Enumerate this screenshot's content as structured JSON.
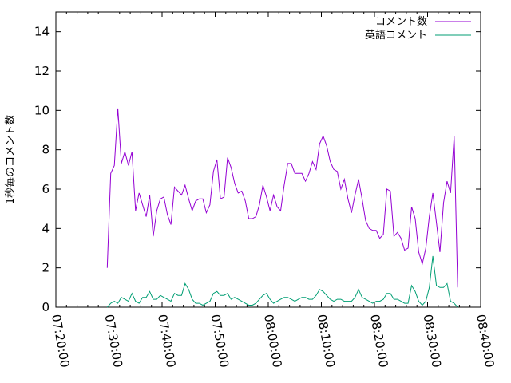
{
  "chart_data": {
    "type": "line",
    "title": "",
    "xlabel": "",
    "ylabel": "1秒毎のコメント数",
    "xlim": [
      "07:20:00",
      "08:40:00"
    ],
    "ylim": [
      0,
      15
    ],
    "yticks": [
      0,
      2,
      4,
      6,
      8,
      10,
      12,
      14
    ],
    "xticks": [
      "07:20:00",
      "07:30:00",
      "07:40:00",
      "07:50:00",
      "08:00:00",
      "08:10:00",
      "08:20:00",
      "08:30:00",
      "08:40:00"
    ],
    "grid": false,
    "legend": "top-right",
    "x_step_seconds": 40,
    "x_start": "07:29:40",
    "series": [
      {
        "name": "コメント数",
        "color": "#9400d3",
        "values": [
          2.0,
          6.8,
          7.2,
          10.1,
          7.3,
          7.9,
          7.2,
          7.9,
          4.9,
          5.8,
          5.2,
          4.6,
          5.7,
          3.6,
          4.9,
          5.5,
          5.6,
          4.7,
          4.2,
          6.1,
          5.9,
          5.7,
          6.2,
          5.5,
          4.9,
          5.4,
          5.5,
          5.5,
          4.8,
          5.2,
          6.9,
          7.5,
          5.5,
          5.6,
          7.6,
          7.1,
          6.3,
          5.8,
          5.9,
          5.4,
          4.5,
          4.5,
          4.6,
          5.2,
          6.2,
          5.6,
          4.9,
          5.7,
          5.1,
          4.9,
          6.2,
          7.3,
          7.3,
          6.8,
          6.8,
          6.8,
          6.4,
          6.8,
          7.4,
          7.0,
          8.3,
          8.7,
          8.2,
          7.4,
          7.0,
          6.9,
          6.0,
          6.5,
          5.5,
          4.8,
          5.7,
          6.5,
          5.5,
          4.4,
          4.0,
          3.9,
          3.9,
          3.5,
          3.7,
          6.0,
          5.9,
          3.6,
          3.8,
          3.5,
          2.9,
          3.0,
          5.1,
          4.5,
          2.8,
          2.2,
          3.0,
          4.6,
          5.8,
          4.3,
          2.8,
          5.3,
          6.4,
          5.8,
          8.7,
          1.0
        ]
      },
      {
        "name": "英語コメント",
        "color": "#009e73",
        "values": [
          0.0,
          0.2,
          0.3,
          0.2,
          0.5,
          0.4,
          0.3,
          0.7,
          0.3,
          0.2,
          0.5,
          0.5,
          0.8,
          0.4,
          0.4,
          0.6,
          0.5,
          0.4,
          0.3,
          0.7,
          0.6,
          0.6,
          1.2,
          0.9,
          0.4,
          0.2,
          0.2,
          0.1,
          0.2,
          0.3,
          0.7,
          0.8,
          0.6,
          0.6,
          0.7,
          0.4,
          0.5,
          0.4,
          0.3,
          0.2,
          0.1,
          0.1,
          0.2,
          0.4,
          0.6,
          0.7,
          0.4,
          0.2,
          0.3,
          0.4,
          0.5,
          0.5,
          0.4,
          0.3,
          0.4,
          0.5,
          0.5,
          0.4,
          0.4,
          0.6,
          0.9,
          0.8,
          0.6,
          0.4,
          0.3,
          0.4,
          0.4,
          0.3,
          0.3,
          0.3,
          0.5,
          0.9,
          0.5,
          0.4,
          0.3,
          0.2,
          0.3,
          0.3,
          0.4,
          0.7,
          0.7,
          0.4,
          0.4,
          0.3,
          0.2,
          0.2,
          1.1,
          0.8,
          0.3,
          0.1,
          0.3,
          1.0,
          2.6,
          1.1,
          1.0,
          1.0,
          1.2,
          0.3,
          0.2,
          0.0
        ]
      }
    ]
  }
}
